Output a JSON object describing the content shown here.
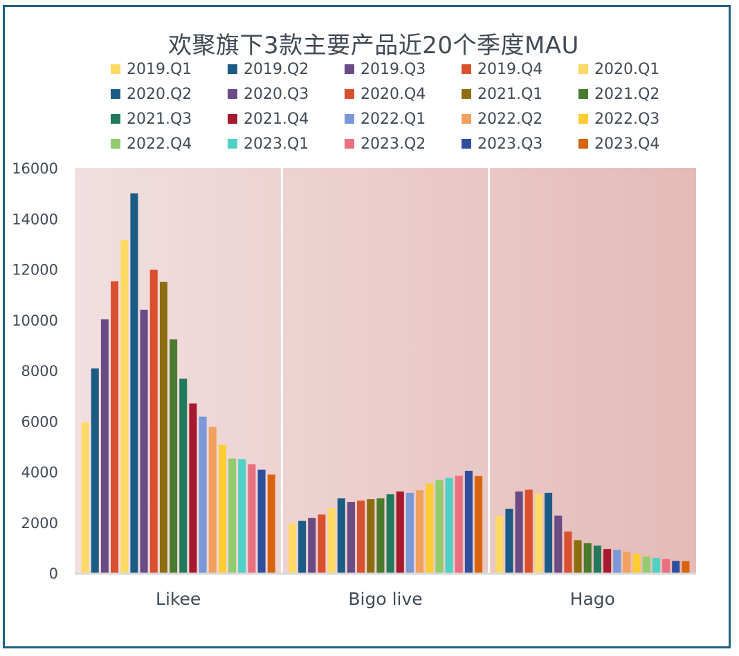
{
  "chart_data": {
    "type": "bar",
    "title": "欢聚旗下3款主要产品近20个季度MAU",
    "xlabel": "",
    "ylabel": "",
    "ylim": [
      0,
      16000
    ],
    "yticks": [
      "0",
      "2000",
      "4000",
      "6000",
      "8000",
      "10000",
      "12000",
      "14000",
      "16000"
    ],
    "categories": [
      "Likee",
      "Bigo live",
      "Hago"
    ],
    "legend_position": "top",
    "grid": false,
    "series": [
      {
        "name": "2019.Q1",
        "color": "#ffd966",
        "values": [
          5950,
          1950,
          2260
        ]
      },
      {
        "name": "2019.Q2",
        "color": "#1b5c86",
        "values": [
          8080,
          2060,
          2540
        ]
      },
      {
        "name": "2019.Q3",
        "color": "#6a4b85",
        "values": [
          10020,
          2180,
          3220
        ]
      },
      {
        "name": "2019.Q4",
        "color": "#d9502e",
        "values": [
          11520,
          2310,
          3290
        ]
      },
      {
        "name": "2020.Q1",
        "color": "#ffd966",
        "values": [
          13150,
          2570,
          3120
        ]
      },
      {
        "name": "2020.Q2",
        "color": "#1b5c86",
        "values": [
          15000,
          2950,
          3170
        ]
      },
      {
        "name": "2020.Q3",
        "color": "#6a4b85",
        "values": [
          10400,
          2810,
          2270
        ]
      },
      {
        "name": "2020.Q4",
        "color": "#d9502e",
        "values": [
          11980,
          2860,
          1640
        ]
      },
      {
        "name": "2021.Q1",
        "color": "#8c6d0f",
        "values": [
          11500,
          2920,
          1300
        ]
      },
      {
        "name": "2021.Q2",
        "color": "#4a7a2e",
        "values": [
          9230,
          2950,
          1180
        ]
      },
      {
        "name": "2021.Q3",
        "color": "#227a5c",
        "values": [
          7680,
          3110,
          1080
        ]
      },
      {
        "name": "2021.Q4",
        "color": "#a6192e",
        "values": [
          6700,
          3220,
          950
        ]
      },
      {
        "name": "2022.Q1",
        "color": "#7b98d9",
        "values": [
          6180,
          3170,
          910
        ]
      },
      {
        "name": "2022.Q2",
        "color": "#f2a05e",
        "values": [
          5770,
          3270,
          840
        ]
      },
      {
        "name": "2022.Q3",
        "color": "#ffcc33",
        "values": [
          5060,
          3540,
          760
        ]
      },
      {
        "name": "2022.Q4",
        "color": "#92cc6e",
        "values": [
          4520,
          3680,
          650
        ]
      },
      {
        "name": "2023.Q1",
        "color": "#4fd1c5",
        "values": [
          4500,
          3760,
          600
        ]
      },
      {
        "name": "2023.Q2",
        "color": "#ea6f80",
        "values": [
          4300,
          3840,
          550
        ]
      },
      {
        "name": "2023.Q3",
        "color": "#2f4f9e",
        "values": [
          4080,
          4040,
          480
        ]
      },
      {
        "name": "2023.Q4",
        "color": "#d9640f",
        "values": [
          3890,
          3830,
          470
        ]
      }
    ],
    "colors": {
      "frame": "#1f5f82",
      "plot_background_start": "#f2dfe0",
      "plot_background_end": "#e3bbb7",
      "separator": "#ffffff",
      "axis": "#d9d9d9",
      "text": "#404a55"
    }
  }
}
